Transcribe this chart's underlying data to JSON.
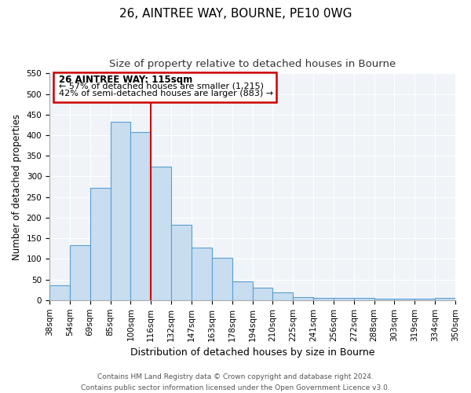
{
  "title": "26, AINTREE WAY, BOURNE, PE10 0WG",
  "subtitle": "Size of property relative to detached houses in Bourne",
  "xlabel": "Distribution of detached houses by size in Bourne",
  "ylabel": "Number of detached properties",
  "bar_labels": [
    "38sqm",
    "54sqm",
    "69sqm",
    "85sqm",
    "100sqm",
    "116sqm",
    "132sqm",
    "147sqm",
    "163sqm",
    "178sqm",
    "194sqm",
    "210sqm",
    "225sqm",
    "241sqm",
    "256sqm",
    "272sqm",
    "288sqm",
    "303sqm",
    "319sqm",
    "334sqm",
    "350sqm"
  ],
  "bar_values": [
    35,
    133,
    272,
    433,
    407,
    323,
    183,
    127,
    102,
    46,
    30,
    18,
    7,
    6,
    6,
    6,
    4,
    4,
    4,
    5
  ],
  "bar_color": "#c8ddf0",
  "bar_edge_color": "#5a9fd4",
  "vline_x": 5,
  "vline_color": "#cc0000",
  "ylim": [
    0,
    550
  ],
  "yticks": [
    0,
    50,
    100,
    150,
    200,
    250,
    300,
    350,
    400,
    450,
    500,
    550
  ],
  "annotation_title": "26 AINTREE WAY: 115sqm",
  "annotation_line1": "← 57% of detached houses are smaller (1,215)",
  "annotation_line2": "42% of semi-detached houses are larger (883) →",
  "annotation_box_color": "#ffffff",
  "annotation_box_edge": "#cc0000",
  "footer1": "Contains HM Land Registry data © Crown copyright and database right 2024.",
  "footer2": "Contains public sector information licensed under the Open Government Licence v3.0.",
  "title_fontsize": 11,
  "subtitle_fontsize": 9.5,
  "xlabel_fontsize": 9,
  "ylabel_fontsize": 8.5,
  "tick_fontsize": 7.5,
  "annotation_title_fontsize": 8.5,
  "annotation_text_fontsize": 8,
  "footer_fontsize": 6.5,
  "bg_color": "#f0f4f8"
}
